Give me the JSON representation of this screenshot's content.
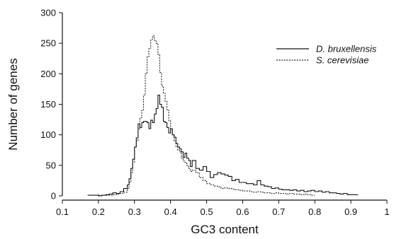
{
  "chart_data": {
    "type": "line",
    "style": "step",
    "xlabel": "GC3 content",
    "ylabel": "Number of genes",
    "xlim": [
      0.1,
      1.0
    ],
    "ylim": [
      0,
      300
    ],
    "xticks": [
      "0.1",
      "0.2",
      "0.3",
      "0.4",
      "0.5",
      "0.6",
      "0.7",
      "0.8",
      "0.9",
      "1"
    ],
    "yticks": [
      "0",
      "50",
      "100",
      "150",
      "200",
      "250",
      "300"
    ],
    "grid": false,
    "legend_position": "top-right",
    "series": [
      {
        "name": "D. bruxellensis",
        "line_style": "solid",
        "color": "#111111",
        "points": [
          [
            0.17,
            1
          ],
          [
            0.2,
            0
          ],
          [
            0.21,
            1
          ],
          [
            0.22,
            2
          ],
          [
            0.23,
            3
          ],
          [
            0.24,
            5
          ],
          [
            0.25,
            4
          ],
          [
            0.26,
            7
          ],
          [
            0.27,
            12
          ],
          [
            0.28,
            18
          ],
          [
            0.285,
            28
          ],
          [
            0.29,
            45
          ],
          [
            0.295,
            60
          ],
          [
            0.3,
            80
          ],
          [
            0.305,
            95
          ],
          [
            0.31,
            118
          ],
          [
            0.315,
            112
          ],
          [
            0.32,
            120
          ],
          [
            0.325,
            122
          ],
          [
            0.33,
            122
          ],
          [
            0.335,
            120
          ],
          [
            0.34,
            110
          ],
          [
            0.345,
            124
          ],
          [
            0.35,
            120
          ],
          [
            0.355,
            134
          ],
          [
            0.36,
            143
          ],
          [
            0.365,
            165
          ],
          [
            0.37,
            150
          ],
          [
            0.375,
            145
          ],
          [
            0.38,
            122
          ],
          [
            0.385,
            120
          ],
          [
            0.39,
            112
          ],
          [
            0.395,
            103
          ],
          [
            0.4,
            110
          ],
          [
            0.405,
            100
          ],
          [
            0.41,
            96
          ],
          [
            0.415,
            86
          ],
          [
            0.42,
            80
          ],
          [
            0.425,
            77
          ],
          [
            0.43,
            72
          ],
          [
            0.435,
            63
          ],
          [
            0.44,
            70
          ],
          [
            0.445,
            62
          ],
          [
            0.45,
            58
          ],
          [
            0.455,
            48
          ],
          [
            0.46,
            58
          ],
          [
            0.47,
            45
          ],
          [
            0.48,
            42
          ],
          [
            0.49,
            48
          ],
          [
            0.5,
            40
          ],
          [
            0.51,
            30
          ],
          [
            0.52,
            35
          ],
          [
            0.53,
            38
          ],
          [
            0.54,
            36
          ],
          [
            0.55,
            34
          ],
          [
            0.56,
            32
          ],
          [
            0.57,
            25
          ],
          [
            0.58,
            27
          ],
          [
            0.59,
            22
          ],
          [
            0.6,
            22
          ],
          [
            0.61,
            20
          ],
          [
            0.62,
            20
          ],
          [
            0.63,
            18
          ],
          [
            0.64,
            25
          ],
          [
            0.65,
            18
          ],
          [
            0.66,
            16
          ],
          [
            0.67,
            15
          ],
          [
            0.68,
            12
          ],
          [
            0.69,
            13
          ],
          [
            0.7,
            11
          ],
          [
            0.71,
            10
          ],
          [
            0.72,
            10
          ],
          [
            0.73,
            9
          ],
          [
            0.74,
            10
          ],
          [
            0.75,
            8
          ],
          [
            0.76,
            9
          ],
          [
            0.77,
            7
          ],
          [
            0.78,
            8
          ],
          [
            0.79,
            9
          ],
          [
            0.8,
            7
          ],
          [
            0.81,
            8
          ],
          [
            0.82,
            6
          ],
          [
            0.83,
            7
          ],
          [
            0.84,
            5
          ],
          [
            0.85,
            5
          ],
          [
            0.86,
            4
          ],
          [
            0.87,
            3
          ],
          [
            0.88,
            4
          ],
          [
            0.89,
            2
          ],
          [
            0.9,
            2
          ],
          [
            0.91,
            2
          ]
        ]
      },
      {
        "name": "S. cerevisiae",
        "line_style": "dotted",
        "color": "#222222",
        "points": [
          [
            0.2,
            1
          ],
          [
            0.22,
            1
          ],
          [
            0.24,
            2
          ],
          [
            0.25,
            3
          ],
          [
            0.26,
            4
          ],
          [
            0.27,
            6
          ],
          [
            0.28,
            12
          ],
          [
            0.285,
            22
          ],
          [
            0.29,
            38
          ],
          [
            0.295,
            55
          ],
          [
            0.3,
            80
          ],
          [
            0.305,
            90
          ],
          [
            0.31,
            110
          ],
          [
            0.315,
            128
          ],
          [
            0.32,
            140
          ],
          [
            0.325,
            165
          ],
          [
            0.33,
            200
          ],
          [
            0.335,
            228
          ],
          [
            0.34,
            242
          ],
          [
            0.345,
            256
          ],
          [
            0.35,
            262
          ],
          [
            0.355,
            255
          ],
          [
            0.36,
            250
          ],
          [
            0.365,
            232
          ],
          [
            0.37,
            202
          ],
          [
            0.375,
            180
          ],
          [
            0.38,
            168
          ],
          [
            0.385,
            155
          ],
          [
            0.39,
            140
          ],
          [
            0.395,
            123
          ],
          [
            0.4,
            110
          ],
          [
            0.405,
            100
          ],
          [
            0.41,
            90
          ],
          [
            0.415,
            80
          ],
          [
            0.42,
            75
          ],
          [
            0.425,
            72
          ],
          [
            0.43,
            62
          ],
          [
            0.435,
            57
          ],
          [
            0.44,
            55
          ],
          [
            0.445,
            50
          ],
          [
            0.45,
            45
          ],
          [
            0.455,
            40
          ],
          [
            0.46,
            42
          ],
          [
            0.47,
            38
          ],
          [
            0.48,
            30
          ],
          [
            0.49,
            25
          ],
          [
            0.5,
            20
          ],
          [
            0.51,
            18
          ],
          [
            0.52,
            16
          ],
          [
            0.53,
            15
          ],
          [
            0.54,
            12
          ],
          [
            0.55,
            13
          ],
          [
            0.56,
            12
          ],
          [
            0.57,
            11
          ],
          [
            0.58,
            10
          ],
          [
            0.59,
            9
          ],
          [
            0.6,
            8
          ],
          [
            0.61,
            8
          ],
          [
            0.62,
            7
          ],
          [
            0.63,
            6
          ],
          [
            0.64,
            7
          ],
          [
            0.65,
            6
          ],
          [
            0.66,
            5
          ],
          [
            0.67,
            5
          ],
          [
            0.68,
            4
          ],
          [
            0.69,
            5
          ],
          [
            0.7,
            4
          ],
          [
            0.71,
            4
          ],
          [
            0.72,
            3
          ],
          [
            0.73,
            4
          ],
          [
            0.74,
            3
          ],
          [
            0.75,
            3
          ],
          [
            0.76,
            2
          ],
          [
            0.77,
            3
          ],
          [
            0.78,
            2
          ],
          [
            0.79,
            1
          ]
        ]
      }
    ]
  }
}
